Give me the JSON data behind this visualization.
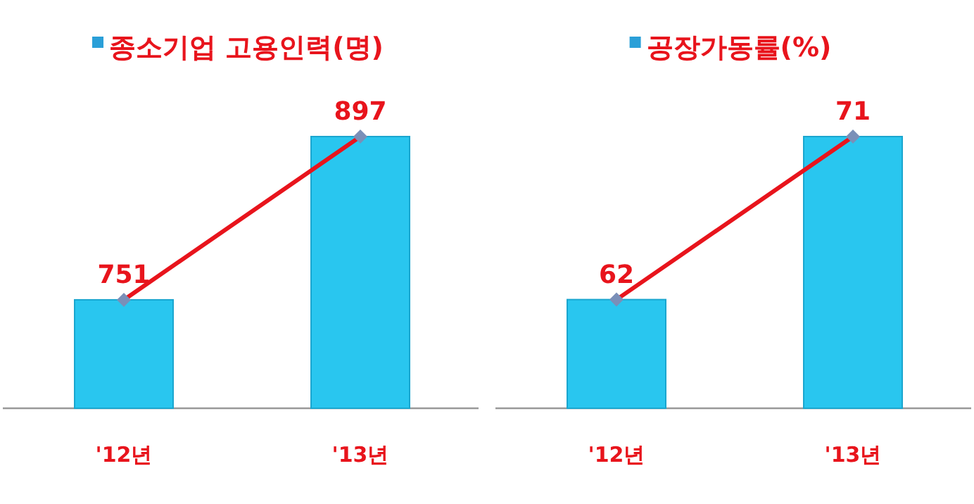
{
  "chart_data": [
    {
      "type": "bar",
      "title": "종소기업 고용인력(명)",
      "categories": [
        "'12년",
        "'13년"
      ],
      "ylim": [
        654,
        897
      ],
      "marker": "diamond",
      "series": [
        {
          "type": "bar",
          "color": "#29c6ef",
          "values": [
            751,
            897
          ]
        },
        {
          "type": "line",
          "color": "#e8141c",
          "values": [
            751,
            897
          ],
          "value_labels": [
            "751",
            "897"
          ]
        }
      ]
    },
    {
      "type": "bar",
      "title": "공장가동률(%)",
      "categories": [
        "'12년",
        "'13년"
      ],
      "ylim": [
        56,
        71
      ],
      "marker": "diamond",
      "series": [
        {
          "type": "bar",
          "color": "#29c6ef",
          "values": [
            62,
            71
          ]
        },
        {
          "type": "line",
          "color": "#e8141c",
          "values": [
            62,
            71
          ],
          "value_labels": [
            "62",
            "71"
          ]
        }
      ]
    }
  ]
}
